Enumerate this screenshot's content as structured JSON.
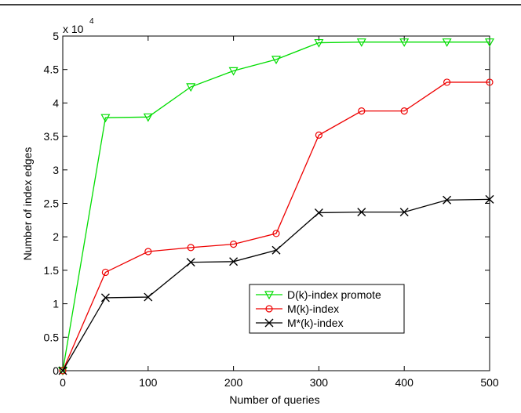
{
  "chart_data": {
    "type": "line",
    "title": "",
    "xlabel": "Number of queries",
    "ylabel": "Number of index edges",
    "y_multiplier_label": "x 10",
    "y_multiplier_exponent": "4",
    "xlim": [
      0,
      500
    ],
    "ylim": [
      0,
      5
    ],
    "x_ticks": [
      0,
      100,
      200,
      300,
      400,
      500
    ],
    "y_ticks": [
      0,
      0.5,
      1,
      1.5,
      2,
      2.5,
      3,
      3.5,
      4,
      4.5,
      5
    ],
    "x_tick_labels": [
      "0",
      "100",
      "200",
      "300",
      "400",
      "500"
    ],
    "y_tick_labels": [
      "0",
      "0.5",
      "1",
      "1.5",
      "2",
      "2.5",
      "3",
      "3.5",
      "4",
      "4.5",
      "5"
    ],
    "grid": false,
    "legend_position": "lower-right",
    "x": [
      0,
      50,
      100,
      150,
      200,
      250,
      300,
      350,
      400,
      450,
      500
    ],
    "series": [
      {
        "name": "D(k)-index promote",
        "color": "#00dd00",
        "marker": "triangle-down",
        "values": [
          0,
          3.78,
          3.79,
          4.24,
          4.48,
          4.65,
          4.9,
          4.91,
          4.91,
          4.91,
          4.91
        ]
      },
      {
        "name": "M(k)-index",
        "color": "#ee0000",
        "marker": "circle",
        "values": [
          0,
          1.47,
          1.78,
          1.84,
          1.89,
          2.05,
          3.52,
          3.88,
          3.88,
          4.31,
          4.31
        ]
      },
      {
        "name": "M*(k)-index",
        "color": "#000000",
        "marker": "x",
        "values": [
          0,
          1.09,
          1.1,
          1.62,
          1.63,
          1.8,
          2.36,
          2.37,
          2.37,
          2.55,
          2.56
        ]
      }
    ]
  }
}
